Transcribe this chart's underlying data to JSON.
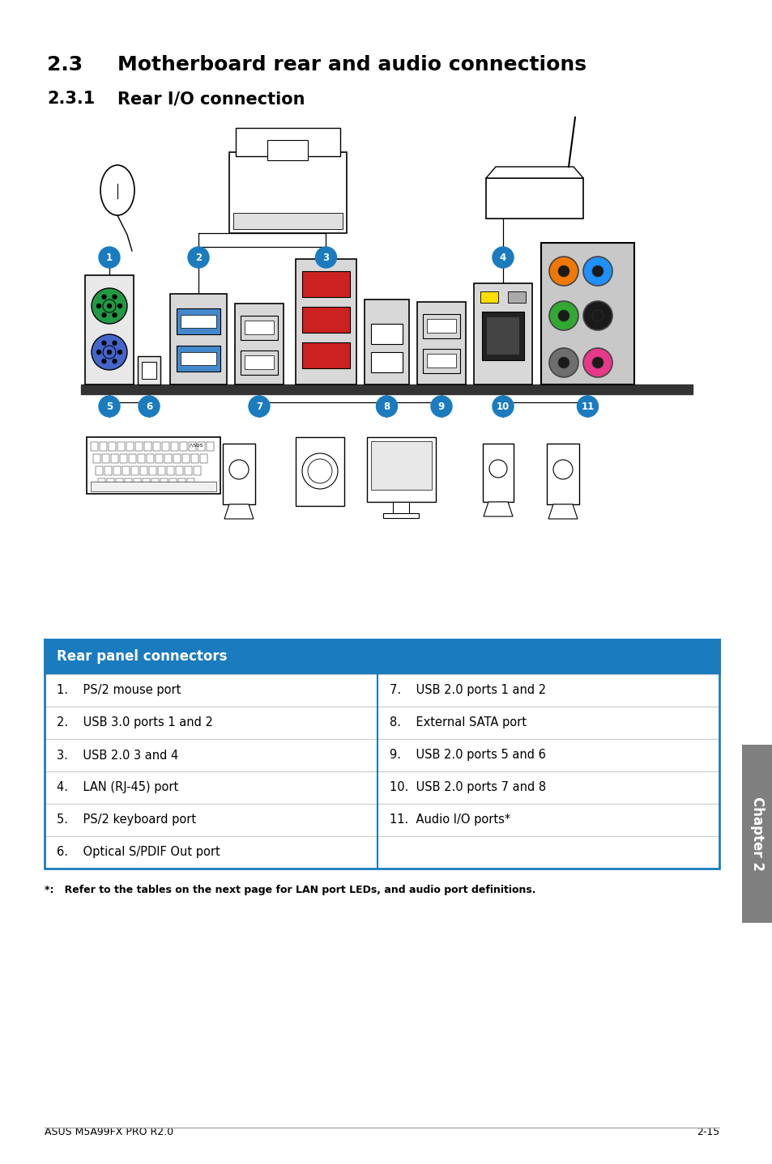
{
  "title_section": "2.3",
  "title_text": "Motherboard rear and audio connections",
  "subtitle_section": "2.3.1",
  "subtitle_text": "Rear I/O connection",
  "table_header": "Rear panel connectors",
  "table_header_bg": "#1a7bbf",
  "table_header_color": "#ffffff",
  "table_border_color": "#1a7bbf",
  "table_divider_color": "#cccccc",
  "left_items": [
    "1.    PS/2 mouse port",
    "2.    USB 3.0 ports 1 and 2",
    "3.    USB 2.0 3 and 4",
    "4.    LAN (RJ-45) port",
    "5.    PS/2 keyboard port",
    "6.    Optical S/PDIF Out port"
  ],
  "right_items": [
    "7.    USB 2.0 ports 1 and 2",
    "8.    External SATA port",
    "9.    USB 2.0 ports 5 and 6",
    "10.  USB 2.0 ports 7 and 8",
    "11.  Audio I/O ports*",
    ""
  ],
  "footnote": "*:   Refer to the tables on the next page for LAN port LEDs, and audio port definitions.",
  "footer_left": "ASUS M5A99FX PRO R2.0",
  "footer_right": "2-15",
  "chapter_label": "Chapter 2",
  "tab_color": "#7f7f7f",
  "background_color": "#ffffff",
  "label_circle_color": "#1a7bbf",
  "audio_colors": [
    "#f07800",
    "#1e90ff",
    "#32a832",
    "#1a1a1a",
    "#6e6e6e",
    "#e8388a"
  ],
  "usb3_color": "#4488cc",
  "esata_color": "#888888",
  "red_port_color": "#cc2222"
}
